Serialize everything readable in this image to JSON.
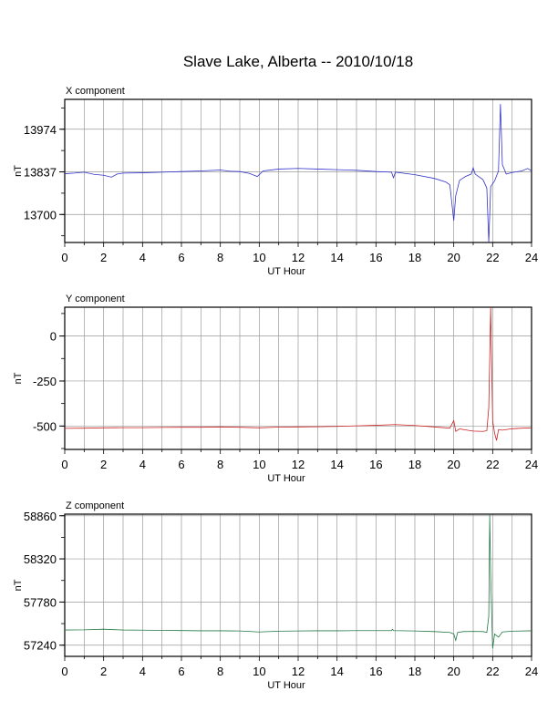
{
  "page": {
    "title": "Slave Lake, Alberta -- 2010/10/18"
  },
  "chart_data": [
    {
      "type": "line",
      "panel": "x",
      "title": "X component",
      "xlabel": "UT Hour",
      "ylabel": "nT",
      "xlim": [
        0,
        24
      ],
      "ylim": [
        13610,
        14070
      ],
      "x_ticks": [
        0,
        2,
        4,
        6,
        8,
        10,
        12,
        14,
        16,
        18,
        20,
        22,
        24
      ],
      "y_ticks": [
        13974,
        13837,
        13700
      ],
      "grid": true,
      "color": "#3333cc",
      "series": [
        {
          "values": [
            [
              0,
              13831
            ],
            [
              0.5,
              13833
            ],
            [
              1.0,
              13836
            ],
            [
              1.5,
              13829
            ],
            [
              2.0,
              13826
            ],
            [
              2.4,
              13820
            ],
            [
              2.7,
              13830
            ],
            [
              3.0,
              13833
            ],
            [
              4.0,
              13834
            ],
            [
              5.0,
              13836
            ],
            [
              6.0,
              13838
            ],
            [
              7.0,
              13840
            ],
            [
              8.0,
              13843
            ],
            [
              8.5,
              13839
            ],
            [
              9.0,
              13838
            ],
            [
              9.5,
              13832
            ],
            [
              9.9,
              13822
            ],
            [
              10.2,
              13840
            ],
            [
              11.0,
              13846
            ],
            [
              12.0,
              13848
            ],
            [
              13.0,
              13846
            ],
            [
              14.0,
              13844
            ],
            [
              15.0,
              13842
            ],
            [
              16.0,
              13838
            ],
            [
              16.8,
              13836
            ],
            [
              16.9,
              13818
            ],
            [
              17.0,
              13836
            ],
            [
              18.0,
              13828
            ],
            [
              19.0,
              13816
            ],
            [
              19.6,
              13804
            ],
            [
              19.8,
              13795
            ],
            [
              20.0,
              13680
            ],
            [
              20.1,
              13760
            ],
            [
              20.3,
              13810
            ],
            [
              20.6,
              13822
            ],
            [
              20.9,
              13830
            ],
            [
              21.0,
              13850
            ],
            [
              21.1,
              13830
            ],
            [
              21.5,
              13812
            ],
            [
              21.7,
              13785
            ],
            [
              21.8,
              13610
            ],
            [
              21.9,
              13790
            ],
            [
              22.1,
              13808
            ],
            [
              22.3,
              13840
            ],
            [
              22.4,
              14055
            ],
            [
              22.5,
              13860
            ],
            [
              22.7,
              13830
            ],
            [
              23.0,
              13835
            ],
            [
              23.5,
              13840
            ],
            [
              23.8,
              13848
            ],
            [
              24.0,
              13840
            ]
          ]
        }
      ]
    },
    {
      "type": "line",
      "panel": "y",
      "title": "Y component",
      "xlabel": "UT Hour",
      "ylabel": "nT",
      "xlim": [
        0,
        24
      ],
      "ylim": [
        -630,
        160
      ],
      "x_ticks": [
        0,
        2,
        4,
        6,
        8,
        10,
        12,
        14,
        16,
        18,
        20,
        22,
        24
      ],
      "y_ticks": [
        0,
        -250,
        -500
      ],
      "grid": true,
      "color": "#cc2222",
      "series": [
        {
          "values": [
            [
              0,
              -513
            ],
            [
              1.0,
              -512
            ],
            [
              2.0,
              -510
            ],
            [
              3.0,
              -509
            ],
            [
              4.0,
              -509
            ],
            [
              5.0,
              -508
            ],
            [
              6.0,
              -507
            ],
            [
              7.0,
              -507
            ],
            [
              8.0,
              -505
            ],
            [
              9.0,
              -507
            ],
            [
              10.0,
              -510
            ],
            [
              11.0,
              -506
            ],
            [
              12.0,
              -505
            ],
            [
              13.0,
              -504
            ],
            [
              14.0,
              -502
            ],
            [
              15.0,
              -499
            ],
            [
              16.0,
              -496
            ],
            [
              17.0,
              -492
            ],
            [
              18.0,
              -497
            ],
            [
              19.0,
              -505
            ],
            [
              19.8,
              -512
            ],
            [
              20.0,
              -470
            ],
            [
              20.1,
              -530
            ],
            [
              20.3,
              -516
            ],
            [
              20.8,
              -525
            ],
            [
              21.0,
              -528
            ],
            [
              21.5,
              -530
            ],
            [
              21.7,
              -526
            ],
            [
              21.8,
              -400
            ],
            [
              21.9,
              160
            ],
            [
              22.0,
              -470
            ],
            [
              22.1,
              -540
            ],
            [
              22.2,
              -580
            ],
            [
              22.3,
              -520
            ],
            [
              22.5,
              -523
            ],
            [
              23.0,
              -515
            ],
            [
              23.5,
              -512
            ],
            [
              24.0,
              -510
            ]
          ]
        }
      ]
    },
    {
      "type": "line",
      "panel": "z",
      "title": "Z component",
      "xlabel": "UT Hour",
      "ylabel": "nT",
      "xlim": [
        0,
        24
      ],
      "ylim": [
        57100,
        58880
      ],
      "x_ticks": [
        0,
        2,
        4,
        6,
        8,
        10,
        12,
        14,
        16,
        18,
        20,
        22,
        24
      ],
      "y_ticks": [
        58860,
        58320,
        57780,
        57240
      ],
      "grid": true,
      "color": "#227744",
      "series": [
        {
          "values": [
            [
              0,
              57430
            ],
            [
              1.0,
              57432
            ],
            [
              2.0,
              57440
            ],
            [
              3.0,
              57430
            ],
            [
              4.0,
              57428
            ],
            [
              5.0,
              57425
            ],
            [
              6.0,
              57423
            ],
            [
              7.0,
              57420
            ],
            [
              8.0,
              57420
            ],
            [
              9.0,
              57418
            ],
            [
              10.0,
              57405
            ],
            [
              11.0,
              57415
            ],
            [
              12.0,
              57418
            ],
            [
              13.0,
              57420
            ],
            [
              14.0,
              57420
            ],
            [
              15.0,
              57422
            ],
            [
              16.0,
              57422
            ],
            [
              16.8,
              57423
            ],
            [
              16.85,
              57440
            ],
            [
              16.9,
              57422
            ],
            [
              18.0,
              57418
            ],
            [
              19.0,
              57410
            ],
            [
              19.8,
              57400
            ],
            [
              20.0,
              57380
            ],
            [
              20.1,
              57300
            ],
            [
              20.2,
              57400
            ],
            [
              20.5,
              57410
            ],
            [
              21.0,
              57412
            ],
            [
              21.5,
              57410
            ],
            [
              21.7,
              57400
            ],
            [
              21.8,
              57600
            ],
            [
              21.85,
              58870
            ],
            [
              21.9,
              58100
            ],
            [
              22.0,
              57200
            ],
            [
              22.1,
              57380
            ],
            [
              22.3,
              57340
            ],
            [
              22.5,
              57405
            ],
            [
              23.0,
              57415
            ],
            [
              24.0,
              57420
            ]
          ]
        }
      ]
    }
  ]
}
